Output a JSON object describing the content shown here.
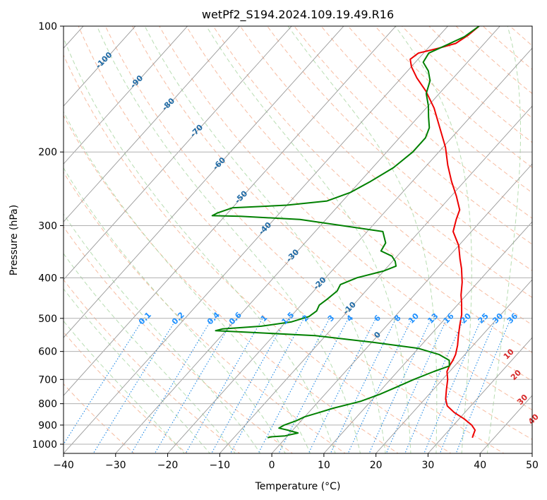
{
  "chart_data": {
    "type": "line",
    "subtype": "skew-t log-p sounding diagram",
    "title": "wetPf2_S194.2024.109.19.49.R16",
    "xlabel": "Temperature (°C)",
    "ylabel": "Pressure (hPa)",
    "xlim": [
      -40,
      50
    ],
    "ylim": [
      1050,
      100
    ],
    "y_scale": "log",
    "x_ticks": [
      -40,
      -30,
      -20,
      -10,
      0,
      10,
      20,
      30,
      40,
      50
    ],
    "y_ticks": [
      100,
      200,
      300,
      400,
      500,
      600,
      700,
      800,
      900,
      1000
    ],
    "grid": true,
    "colors": {
      "temperature": "#ee0000",
      "dewpoint": "#008000",
      "isotherm": "#999999",
      "dry_adiabat": "#f4a582",
      "moist_adiabat": "#a6d49f",
      "mixing_ratio": "#1e88e5",
      "isotherm_label": "#1f6aa5",
      "mixing_label": "#1e90ff",
      "dry_label": "#d62728"
    },
    "isotherm_labels": [
      -100,
      -90,
      -80,
      -70,
      -60,
      -50,
      -40,
      -30,
      -20,
      -10,
      0
    ],
    "mixing_ratio_labels": [
      "0.1",
      "0.2",
      "0.4",
      "0.6",
      "1",
      "1.5",
      "2",
      "3",
      "4",
      "6",
      "8",
      "10",
      "13",
      "16",
      "20",
      "25",
      "30",
      "36"
    ],
    "dry_adiabat_labels": [
      "10",
      "20",
      "30",
      "40"
    ],
    "series": [
      {
        "name": "Temperature",
        "points": [
          [
            35.8,
            965
          ],
          [
            35.5,
            950
          ],
          [
            35.0,
            925
          ],
          [
            33.5,
            900
          ],
          [
            31.0,
            870
          ],
          [
            28.0,
            840
          ],
          [
            25.5,
            810
          ],
          [
            24.0,
            780
          ],
          [
            22.5,
            740
          ],
          [
            21.0,
            700
          ],
          [
            19.5,
            670
          ],
          [
            19.0,
            650
          ],
          [
            18.7,
            630
          ],
          [
            18.2,
            610
          ],
          [
            17.0,
            580
          ],
          [
            15.5,
            550
          ],
          [
            14.0,
            520
          ],
          [
            12.5,
            490
          ],
          [
            10.5,
            460
          ],
          [
            9.0,
            440
          ],
          [
            7.0,
            410
          ],
          [
            4.5,
            380
          ],
          [
            2.5,
            360
          ],
          [
            0.0,
            335
          ],
          [
            -3.5,
            310
          ],
          [
            -5.0,
            290
          ],
          [
            -6.0,
            275
          ],
          [
            -9.0,
            255
          ],
          [
            -12.5,
            235
          ],
          [
            -16.0,
            215
          ],
          [
            -19.5,
            195
          ],
          [
            -24.0,
            175
          ],
          [
            -28.5,
            157
          ],
          [
            -33.0,
            143
          ],
          [
            -37.0,
            133
          ],
          [
            -40.0,
            125
          ],
          [
            -41.5,
            120
          ],
          [
            -41.0,
            116
          ],
          [
            -38.0,
            113
          ],
          [
            -35.5,
            110
          ],
          [
            -34.5,
            105
          ],
          [
            -34.0,
            100
          ]
        ]
      },
      {
        "name": "Dewpoint",
        "points": [
          [
            -3.5,
            965
          ],
          [
            -3.0,
            960
          ],
          [
            -0.5,
            955
          ],
          [
            1.5,
            940
          ],
          [
            -1.0,
            925
          ],
          [
            -3.0,
            915
          ],
          [
            -2.5,
            900
          ],
          [
            -1.0,
            880
          ],
          [
            0.0,
            860
          ],
          [
            2.0,
            840
          ],
          [
            4.0,
            820
          ],
          [
            8.0,
            790
          ],
          [
            10.5,
            760
          ],
          [
            12.5,
            730
          ],
          [
            14.5,
            700
          ],
          [
            17.0,
            670
          ],
          [
            19.0,
            650
          ],
          [
            18.0,
            630
          ],
          [
            15.0,
            610
          ],
          [
            10.0,
            590
          ],
          [
            0.0,
            570
          ],
          [
            -12.0,
            550
          ],
          [
            -25.0,
            540
          ],
          [
            -32.0,
            535
          ],
          [
            -31.0,
            530
          ],
          [
            -24.0,
            522
          ],
          [
            -19.0,
            510
          ],
          [
            -16.5,
            495
          ],
          [
            -16.0,
            480
          ],
          [
            -16.5,
            465
          ],
          [
            -16.0,
            450
          ],
          [
            -15.5,
            430
          ],
          [
            -16.0,
            415
          ],
          [
            -14.0,
            400
          ],
          [
            -10.0,
            385
          ],
          [
            -8.5,
            375
          ],
          [
            -9.5,
            365
          ],
          [
            -11.0,
            355
          ],
          [
            -14.0,
            345
          ],
          [
            -14.5,
            330
          ],
          [
            -17.0,
            310
          ],
          [
            -35.0,
            290
          ],
          [
            -47.0,
            285
          ],
          [
            -52.5,
            284
          ],
          [
            -52.0,
            280
          ],
          [
            -50.0,
            272
          ],
          [
            -40.0,
            268
          ],
          [
            -33.0,
            262
          ],
          [
            -30.0,
            250
          ],
          [
            -28.0,
            235
          ],
          [
            -26.0,
            218
          ],
          [
            -25.0,
            200
          ],
          [
            -25.0,
            185
          ],
          [
            -26.0,
            175
          ],
          [
            -28.0,
            165
          ],
          [
            -30.0,
            155
          ],
          [
            -32.5,
            145
          ],
          [
            -34.0,
            135
          ],
          [
            -36.0,
            128
          ],
          [
            -38.5,
            122
          ],
          [
            -39.0,
            116
          ],
          [
            -37.0,
            111
          ],
          [
            -35.0,
            106
          ],
          [
            -34.0,
            100
          ]
        ]
      }
    ]
  }
}
